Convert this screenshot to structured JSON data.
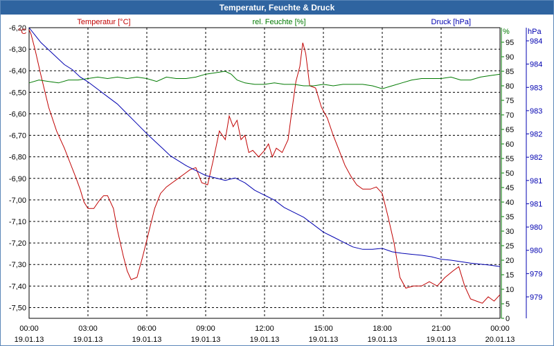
{
  "window": {
    "title": "Temperatur, Feuchte & Druck"
  },
  "colors": {
    "temperature": "#c00000",
    "humidity": "#007a00",
    "pressure": "#0000b0",
    "titlebar": "#2f64a0",
    "grid": "#000000"
  },
  "chart_data": {
    "type": "line",
    "title": "Temperatur, Feuchte & Druck",
    "grid": true,
    "x": {
      "ticks": [
        {
          "time": "00:00",
          "date": "19.01.13"
        },
        {
          "time": "03:00",
          "date": "19.01.13"
        },
        {
          "time": "06:00",
          "date": "19.01.13"
        },
        {
          "time": "09:00",
          "date": "19.01.13"
        },
        {
          "time": "12:00",
          "date": "19.01.13"
        },
        {
          "time": "15:00",
          "date": "19.01.13"
        },
        {
          "time": "18:00",
          "date": "19.01.13"
        },
        {
          "time": "21:00",
          "date": "19.01.13"
        },
        {
          "time": "00:00",
          "date": "20.01.13"
        }
      ]
    },
    "axes": {
      "left": {
        "label": "Temperatur [°C]",
        "unit": "°C",
        "range": [
          -7.55,
          -6.2
        ],
        "ticks": [
          "-6,20",
          "-6,30",
          "-6,40",
          "-6,50",
          "-6,60",
          "-6,70",
          "-6,80",
          "-6,90",
          "-7,00",
          "-7,10",
          "-7,20",
          "-7,30",
          "-7,40",
          "-7,50"
        ]
      },
      "right1": {
        "label": "rel. Feuchte [%]",
        "unit": "%",
        "range": [
          0,
          100
        ],
        "ticks": [
          "95",
          "90",
          "85",
          "80",
          "75",
          "70",
          "65",
          "60",
          "55",
          "50",
          "45",
          "40",
          "35",
          "30",
          "25",
          "20",
          "15",
          "10",
          "5",
          "0"
        ]
      },
      "right2": {
        "label": "Druck [hPa]",
        "unit": "hPa",
        "range": [
          978.3,
          984.2
        ],
        "ticks": [
          "984",
          "984",
          "983",
          "983",
          "982",
          "982",
          "981",
          "981",
          "980",
          "980",
          "979",
          "979"
        ]
      }
    },
    "series": [
      {
        "name": "Temperatur [°C]",
        "axis": "left",
        "color": "#c00000",
        "points": [
          [
            0,
            -6.21
          ],
          [
            0.1,
            -6.23
          ],
          [
            0.3,
            -6.3
          ],
          [
            0.6,
            -6.42
          ],
          [
            1,
            -6.57
          ],
          [
            1.4,
            -6.68
          ],
          [
            1.8,
            -6.76
          ],
          [
            2.1,
            -6.83
          ],
          [
            2.4,
            -6.9
          ],
          [
            2.6,
            -6.95
          ],
          [
            2.8,
            -7.01
          ],
          [
            3,
            -7.04
          ],
          [
            3.3,
            -7.04
          ],
          [
            3.6,
            -7.0
          ],
          [
            3.8,
            -6.98
          ],
          [
            4,
            -6.98
          ],
          [
            4.3,
            -7.04
          ],
          [
            4.5,
            -7.14
          ],
          [
            4.8,
            -7.26
          ],
          [
            5,
            -7.33
          ],
          [
            5.2,
            -7.37
          ],
          [
            5.5,
            -7.36
          ],
          [
            5.8,
            -7.26
          ],
          [
            6.1,
            -7.15
          ],
          [
            6.4,
            -7.04
          ],
          [
            6.7,
            -6.97
          ],
          [
            7,
            -6.94
          ],
          [
            7.3,
            -6.92
          ],
          [
            7.6,
            -6.9
          ],
          [
            7.9,
            -6.88
          ],
          [
            8.2,
            -6.86
          ],
          [
            8.5,
            -6.85
          ],
          [
            8.8,
            -6.92
          ],
          [
            9.1,
            -6.93
          ],
          [
            9.4,
            -6.81
          ],
          [
            9.7,
            -6.68
          ],
          [
            10,
            -6.72
          ],
          [
            10.2,
            -6.61
          ],
          [
            10.4,
            -6.66
          ],
          [
            10.6,
            -6.63
          ],
          [
            10.8,
            -6.72
          ],
          [
            11,
            -6.7
          ],
          [
            11.2,
            -6.78
          ],
          [
            11.4,
            -6.77
          ],
          [
            11.7,
            -6.8
          ],
          [
            12,
            -6.77
          ],
          [
            12.2,
            -6.74
          ],
          [
            12.4,
            -6.8
          ],
          [
            12.6,
            -6.76
          ],
          [
            12.9,
            -6.78
          ],
          [
            13.2,
            -6.72
          ],
          [
            13.4,
            -6.58
          ],
          [
            13.6,
            -6.45
          ],
          [
            13.8,
            -6.38
          ],
          [
            13.95,
            -6.27
          ],
          [
            14.1,
            -6.32
          ],
          [
            14.3,
            -6.47
          ],
          [
            14.6,
            -6.48
          ],
          [
            14.9,
            -6.57
          ],
          [
            15.2,
            -6.62
          ],
          [
            15.5,
            -6.7
          ],
          [
            15.8,
            -6.77
          ],
          [
            16.1,
            -6.84
          ],
          [
            16.4,
            -6.89
          ],
          [
            16.7,
            -6.93
          ],
          [
            17,
            -6.95
          ],
          [
            17.4,
            -6.95
          ],
          [
            17.7,
            -6.94
          ],
          [
            18,
            -6.97
          ],
          [
            18.3,
            -7.08
          ],
          [
            18.6,
            -7.2
          ],
          [
            18.9,
            -7.36
          ],
          [
            19.2,
            -7.41
          ],
          [
            19.6,
            -7.4
          ],
          [
            20,
            -7.4
          ],
          [
            20.4,
            -7.38
          ],
          [
            20.8,
            -7.4
          ],
          [
            21.2,
            -7.36
          ],
          [
            21.6,
            -7.33
          ],
          [
            21.9,
            -7.31
          ],
          [
            22.2,
            -7.4
          ],
          [
            22.5,
            -7.46
          ],
          [
            22.8,
            -7.47
          ],
          [
            23.1,
            -7.48
          ],
          [
            23.4,
            -7.45
          ],
          [
            23.7,
            -7.47
          ],
          [
            24,
            -7.44
          ]
        ]
      },
      {
        "name": "rel. Feuchte [%]",
        "axis": "right1",
        "color": "#007a00",
        "points": [
          [
            0,
            81
          ],
          [
            0.5,
            82
          ],
          [
            1,
            81.5
          ],
          [
            1.5,
            81
          ],
          [
            2,
            82
          ],
          [
            2.5,
            82
          ],
          [
            3,
            82.5
          ],
          [
            3.5,
            83
          ],
          [
            4,
            82.5
          ],
          [
            4.5,
            83
          ],
          [
            5,
            82.5
          ],
          [
            5.5,
            83
          ],
          [
            6,
            82.5
          ],
          [
            6.5,
            81.5
          ],
          [
            7,
            83
          ],
          [
            7.5,
            82.5
          ],
          [
            8,
            82.5
          ],
          [
            8.5,
            83
          ],
          [
            9,
            84
          ],
          [
            9.5,
            84.5
          ],
          [
            10,
            85
          ],
          [
            10.3,
            84
          ],
          [
            10.6,
            82
          ],
          [
            11,
            81
          ],
          [
            11.5,
            80.5
          ],
          [
            12,
            80.5
          ],
          [
            12.5,
            81
          ],
          [
            13,
            80.5
          ],
          [
            13.5,
            80.5
          ],
          [
            14,
            80
          ],
          [
            14.5,
            80
          ],
          [
            15,
            80.5
          ],
          [
            15.5,
            80
          ],
          [
            16,
            80.5
          ],
          [
            16.5,
            80.5
          ],
          [
            17,
            80.5
          ],
          [
            17.5,
            80
          ],
          [
            18,
            79
          ],
          [
            18.5,
            80
          ],
          [
            19,
            81
          ],
          [
            19.5,
            82
          ],
          [
            20,
            82.5
          ],
          [
            20.5,
            82.5
          ],
          [
            21,
            82.5
          ],
          [
            21.5,
            83
          ],
          [
            22,
            82
          ],
          [
            22.5,
            82
          ],
          [
            23,
            83
          ],
          [
            23.5,
            83.5
          ],
          [
            24,
            84
          ]
        ]
      },
      {
        "name": "Druck [hPa]",
        "axis": "right2",
        "color": "#0000b0",
        "points": [
          [
            0,
            984.2
          ],
          [
            0.3,
            984.05
          ],
          [
            0.6,
            983.9
          ],
          [
            1,
            983.75
          ],
          [
            1.4,
            983.6
          ],
          [
            1.8,
            983.45
          ],
          [
            2.2,
            983.35
          ],
          [
            2.6,
            983.2
          ],
          [
            3,
            983.1
          ],
          [
            3.5,
            982.95
          ],
          [
            4,
            982.8
          ],
          [
            4.5,
            982.65
          ],
          [
            5,
            982.45
          ],
          [
            5.5,
            982.25
          ],
          [
            6,
            982.05
          ],
          [
            6.4,
            981.9
          ],
          [
            6.8,
            981.75
          ],
          [
            7.2,
            981.6
          ],
          [
            7.6,
            981.5
          ],
          [
            8,
            981.4
          ],
          [
            8.5,
            981.3
          ],
          [
            9,
            981.2
          ],
          [
            9.5,
            981.15
          ],
          [
            10,
            981.1
          ],
          [
            10.5,
            981.15
          ],
          [
            11,
            981.05
          ],
          [
            11.5,
            980.9
          ],
          [
            12,
            980.8
          ],
          [
            12.5,
            980.7
          ],
          [
            13,
            980.55
          ],
          [
            13.5,
            980.45
          ],
          [
            14,
            980.35
          ],
          [
            14.5,
            980.2
          ],
          [
            15,
            980.05
          ],
          [
            15.5,
            979.95
          ],
          [
            16,
            979.85
          ],
          [
            16.5,
            979.75
          ],
          [
            17,
            979.7
          ],
          [
            17.5,
            979.7
          ],
          [
            18,
            979.72
          ],
          [
            18.5,
            979.65
          ],
          [
            19,
            979.62
          ],
          [
            19.5,
            979.6
          ],
          [
            20,
            979.58
          ],
          [
            20.5,
            979.55
          ],
          [
            21,
            979.5
          ],
          [
            21.5,
            979.48
          ],
          [
            22,
            979.45
          ],
          [
            22.5,
            979.42
          ],
          [
            23,
            979.4
          ],
          [
            23.5,
            979.38
          ],
          [
            24,
            979.35
          ]
        ]
      }
    ]
  }
}
